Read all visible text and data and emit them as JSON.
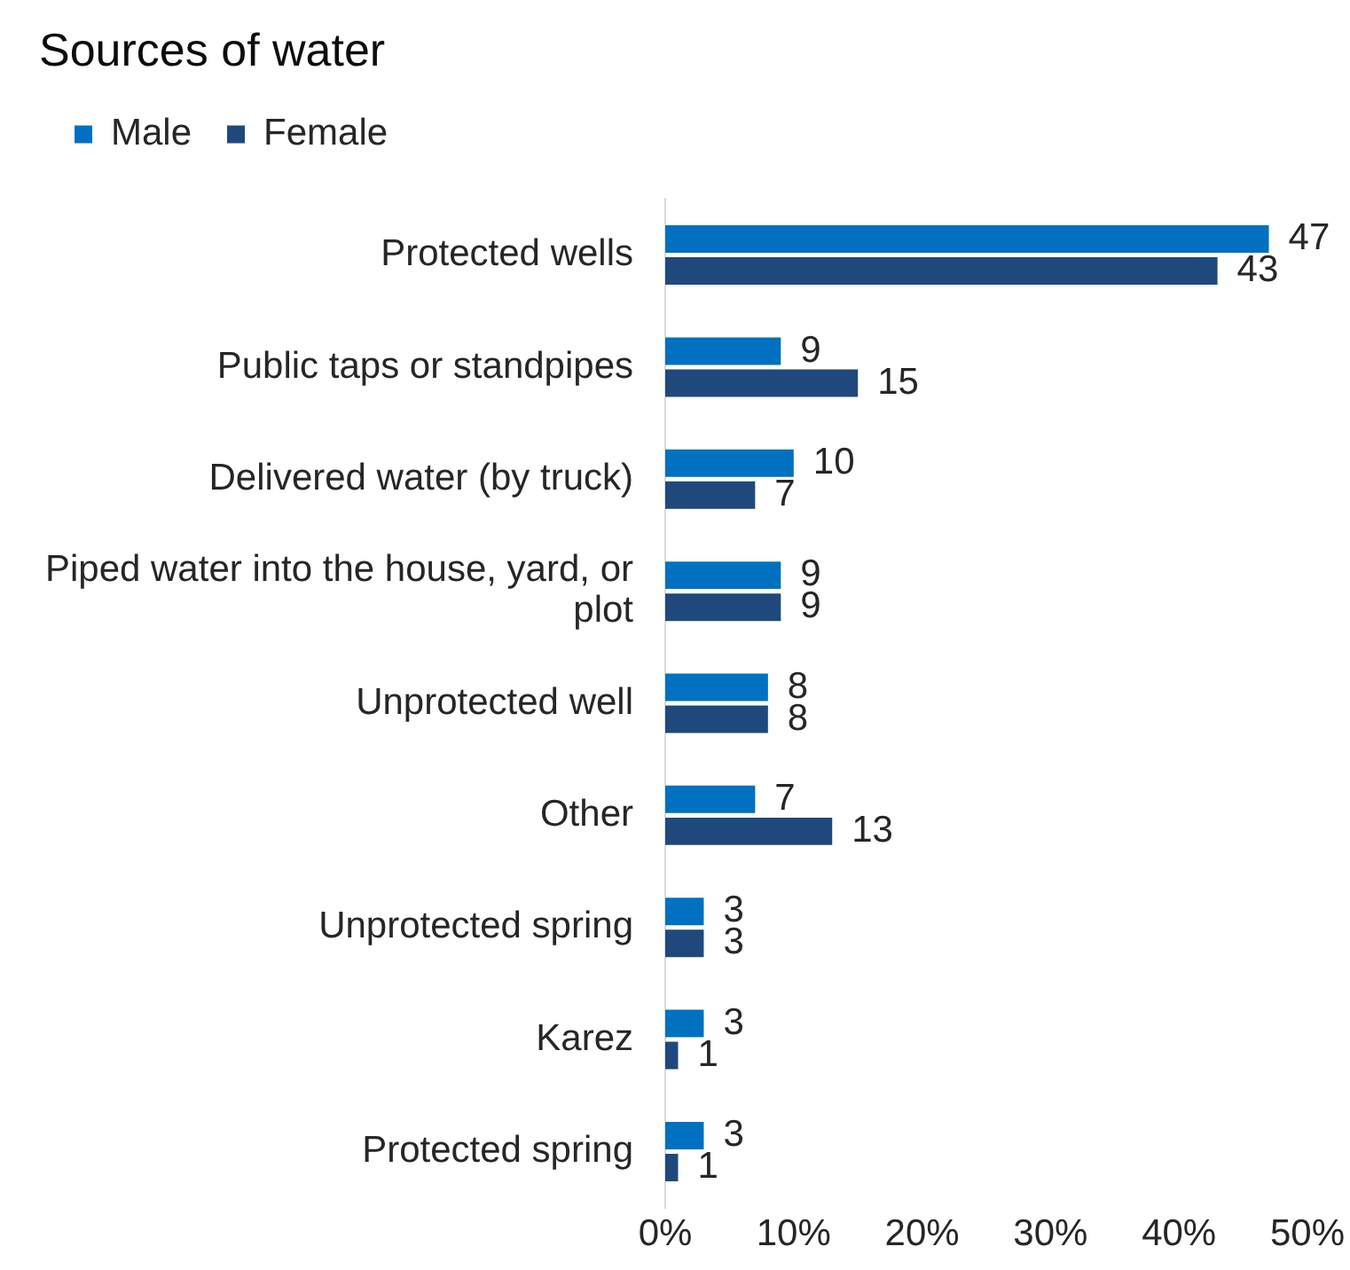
{
  "chart_data": {
    "type": "bar",
    "orientation": "horizontal",
    "title": "Sources of water",
    "categories": [
      "Protected wells",
      "Public taps or standpipes",
      "Delivered water (by truck)",
      "Piped water into the house, yard, or plot",
      "Unprotected well",
      "Other",
      "Unprotected spring",
      "Karez",
      "Protected spring"
    ],
    "series": [
      {
        "name": "Male",
        "color": "#0070c0",
        "values": [
          47,
          9,
          10,
          9,
          8,
          7,
          3,
          3,
          3
        ]
      },
      {
        "name": "Female",
        "color": "#1f497d",
        "values": [
          43,
          15,
          7,
          9,
          8,
          13,
          3,
          1,
          1
        ]
      }
    ],
    "xlim": [
      0,
      50
    ],
    "xticks": [
      {
        "value": 0,
        "label": "0%"
      },
      {
        "value": 10,
        "label": "10%"
      },
      {
        "value": 20,
        "label": "20%"
      },
      {
        "value": 30,
        "label": "30%"
      },
      {
        "value": 40,
        "label": "40%"
      },
      {
        "value": 50,
        "label": "50%"
      }
    ],
    "data_labels": true,
    "legend": "top left"
  }
}
